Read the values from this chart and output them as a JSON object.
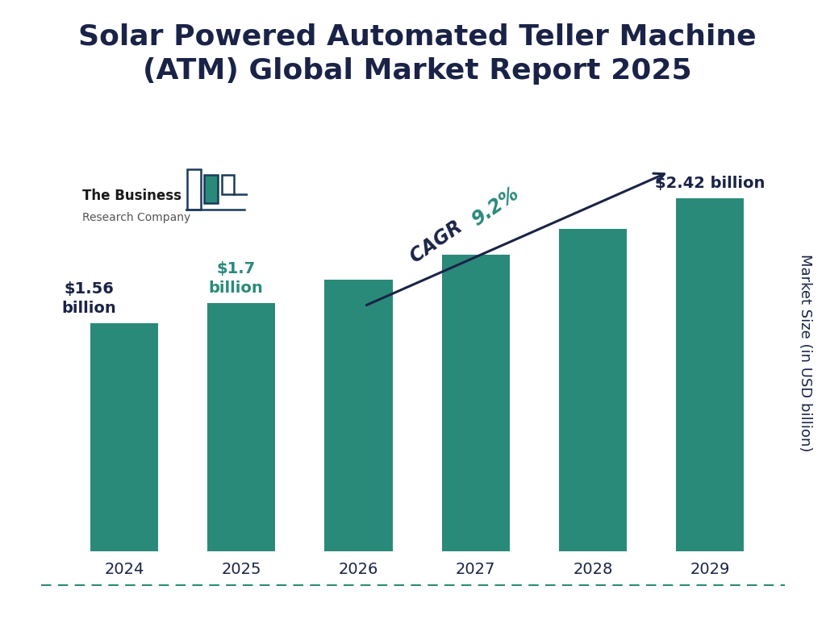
{
  "title": "Solar Powered Automated Teller Machine\n(ATM) Global Market Report 2025",
  "years": [
    "2024",
    "2025",
    "2026",
    "2027",
    "2028",
    "2029"
  ],
  "values": [
    1.56,
    1.7,
    1.86,
    2.03,
    2.21,
    2.42
  ],
  "bar_color": "#2a8a7a",
  "cagr_text_part1": "CAGR ",
  "cagr_text_part2": "9.2%",
  "ylabel": "Market Size (in USD billion)",
  "background_color": "#ffffff",
  "title_color": "#1a2347",
  "label_2024_color": "#1a2347",
  "label_2025_color": "#2a8a7a",
  "label_2029_color": "#1a2347",
  "title_fontsize": 26,
  "ylabel_fontsize": 13,
  "tick_fontsize": 14,
  "ylim": [
    0,
    3.1
  ],
  "logo_text1": "The Business",
  "logo_text2": "Research Company",
  "bottom_line_color": "#2a8a7a",
  "arrow_color": "#1a2347",
  "cagr_color": "#1a2347",
  "cagr_pct_color": "#2a8a7a"
}
